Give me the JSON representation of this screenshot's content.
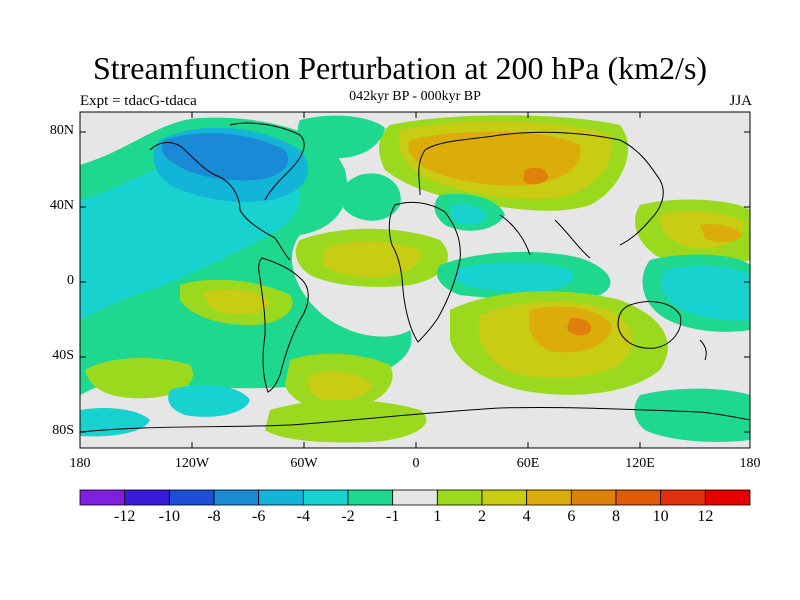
{
  "title": "Streamfunction Perturbation at 200 hPa (km2/s)",
  "subtitle": "042kyr BP - 000kyr BP",
  "left_label": "Expt = tdacG-tdaca",
  "right_label": "JJA",
  "lat_ticks": [
    "80N",
    "40N",
    "0",
    "40S",
    "80S"
  ],
  "lon_ticks": [
    "180",
    "120W",
    "60W",
    "0",
    "60E",
    "120E",
    "180"
  ],
  "colorbar": {
    "colors": [
      "#7f1fe0",
      "#3a1bd9",
      "#1c4fd6",
      "#1b8ad6",
      "#12b4d8",
      "#18d2cf",
      "#1ed890",
      "#e6e6e6",
      "#9bd91e",
      "#c8cc12",
      "#dcac0a",
      "#e0800c",
      "#e05a0a",
      "#e0300c",
      "#e60000"
    ],
    "labels": [
      "-12",
      "-10",
      "-8",
      "-6",
      "-4",
      "-2",
      "-1",
      "1",
      "2",
      "4",
      "6",
      "8",
      "10",
      "12"
    ]
  }
}
